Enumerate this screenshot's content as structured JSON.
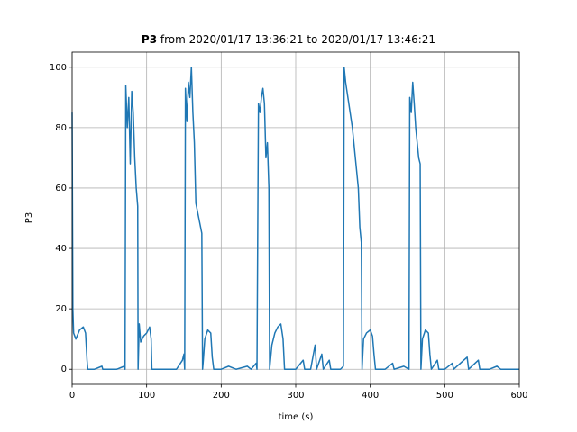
{
  "chart_data": {
    "type": "line",
    "title": {
      "bold": "P3",
      "rest": "from 2020/01/17 13:36:21 to 2020/01/17 13:46:21"
    },
    "xlabel": "time (s)",
    "ylabel": "P3",
    "xlim": [
      0,
      600
    ],
    "ylim": [
      -5,
      105
    ],
    "xticks": [
      0,
      100,
      200,
      300,
      400,
      500,
      600
    ],
    "yticks": [
      0,
      20,
      40,
      60,
      80,
      100
    ],
    "grid": true,
    "x": [
      0,
      1,
      2,
      5,
      10,
      15,
      18,
      20,
      21,
      30,
      40,
      41,
      60,
      70,
      71,
      72,
      74,
      76,
      78,
      80,
      82,
      84,
      86,
      88,
      88.5,
      90,
      92,
      96,
      100,
      104,
      106,
      107,
      120,
      140,
      148,
      150,
      151,
      152,
      154,
      156,
      158,
      160,
      162,
      164,
      166,
      170,
      174,
      175,
      176,
      178,
      182,
      186,
      188,
      190,
      200,
      210,
      220,
      235,
      240,
      247,
      248,
      250,
      252,
      254,
      256,
      258,
      260,
      262,
      264,
      265,
      268,
      272,
      276,
      280,
      283,
      285,
      300,
      310,
      312,
      320,
      326,
      328,
      335,
      337,
      345,
      347,
      360,
      364,
      365,
      367,
      370,
      373,
      376,
      380,
      384,
      386,
      388,
      389,
      391,
      395,
      400,
      403,
      405,
      407,
      420,
      430,
      432,
      445,
      452,
      453,
      455,
      457,
      459,
      461,
      463,
      465,
      467,
      468,
      470,
      474,
      478,
      480,
      482,
      490,
      492,
      500,
      510,
      512,
      530,
      532,
      545,
      547,
      560,
      570,
      575,
      600
    ],
    "series": [
      {
        "name": "P3",
        "color": "#1f77b4",
        "values": [
          85,
          20,
          12,
          10,
          13,
          14,
          12,
          3,
          0,
          0,
          1,
          0,
          0,
          1,
          0,
          94,
          80,
          90,
          68,
          92,
          85,
          70,
          60,
          54,
          0,
          15,
          9,
          11,
          12,
          14,
          10,
          0,
          0,
          0,
          3,
          5,
          0,
          93,
          82,
          95,
          90,
          100,
          85,
          75,
          55,
          50,
          45,
          0,
          3,
          10,
          13,
          12,
          4,
          0,
          0,
          1,
          0,
          1,
          0,
          2,
          0,
          88,
          85,
          90,
          93,
          88,
          70,
          75,
          60,
          0,
          8,
          12,
          14,
          15,
          10,
          0,
          0,
          3,
          0,
          0,
          8,
          0,
          5,
          0,
          3,
          0,
          0,
          1,
          100,
          95,
          90,
          85,
          80,
          70,
          60,
          47,
          42,
          0,
          10,
          12,
          13,
          11,
          5,
          0,
          0,
          2,
          0,
          1,
          0,
          90,
          85,
          95,
          88,
          80,
          75,
          70,
          68,
          0,
          10,
          13,
          12,
          5,
          0,
          3,
          0,
          0,
          2,
          0,
          4,
          0,
          3,
          0,
          0,
          1,
          0,
          0
        ]
      }
    ]
  }
}
